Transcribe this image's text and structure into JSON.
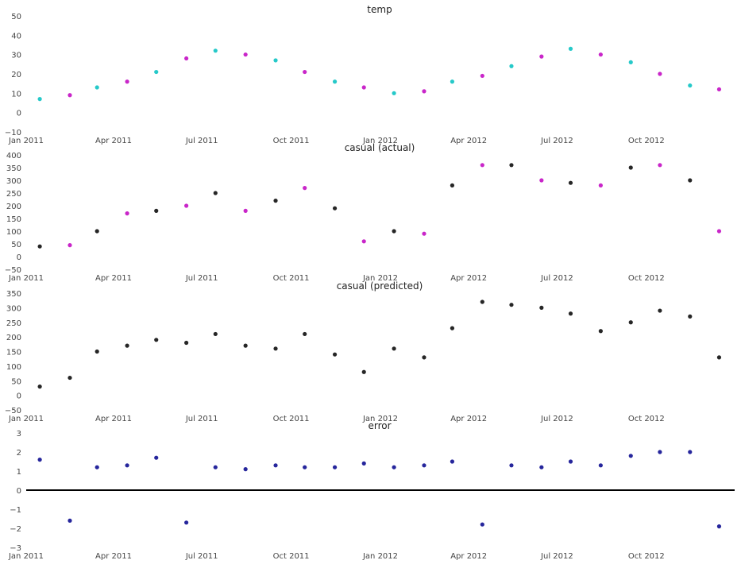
{
  "colors": {
    "cyan": "#00bfbf",
    "magenta": "#bf00bf",
    "black": "#000000",
    "navy": "#00008b",
    "tick": "#444444"
  },
  "x_axis": {
    "range": [
      "2011-01-01",
      "2012-12-31"
    ],
    "ticks": [
      {
        "date": "2011-01-01",
        "label": "Jan 2011"
      },
      {
        "date": "2011-04-01",
        "label": "Apr 2011"
      },
      {
        "date": "2011-07-01",
        "label": "Jul 2011"
      },
      {
        "date": "2011-10-01",
        "label": "Oct 2011"
      },
      {
        "date": "2012-01-01",
        "label": "Jan 2012"
      },
      {
        "date": "2012-04-01",
        "label": "Apr 2012"
      },
      {
        "date": "2012-07-01",
        "label": "Jul 2012"
      },
      {
        "date": "2012-10-01",
        "label": "Oct 2012"
      }
    ]
  },
  "chart_data": [
    {
      "type": "scatter",
      "title": "temp",
      "ylim": [
        -10,
        50
      ],
      "yticks": [
        -10,
        0,
        10,
        20,
        30,
        40,
        50
      ],
      "grid": false,
      "point_colors": [
        "cyan",
        "magenta"
      ],
      "x": [
        "2011-01-15",
        "2011-02-15",
        "2011-03-15",
        "2011-04-15",
        "2011-05-15",
        "2011-06-15",
        "2011-07-15",
        "2011-08-15",
        "2011-09-15",
        "2011-10-15",
        "2011-11-15",
        "2011-12-15",
        "2012-01-15",
        "2012-02-15",
        "2012-03-15",
        "2012-04-15",
        "2012-05-15",
        "2012-06-15",
        "2012-07-15",
        "2012-08-15",
        "2012-09-15",
        "2012-10-15",
        "2012-11-15",
        "2012-12-15"
      ],
      "series": [
        {
          "values": [
            7,
            9,
            13,
            16,
            21,
            28,
            32,
            30,
            27,
            21,
            16,
            13,
            10,
            11,
            16,
            19,
            24,
            29,
            33,
            30,
            26,
            20,
            14,
            12
          ]
        }
      ]
    },
    {
      "type": "scatter",
      "title": "casual (actual)",
      "ylim": [
        -50,
        400
      ],
      "yticks": [
        -50,
        0,
        50,
        100,
        150,
        200,
        250,
        300,
        350,
        400
      ],
      "grid": false,
      "point_colors": [
        "black",
        "magenta"
      ],
      "x": [
        "2011-01-15",
        "2011-02-15",
        "2011-03-15",
        "2011-04-15",
        "2011-05-15",
        "2011-06-15",
        "2011-07-15",
        "2011-08-15",
        "2011-09-15",
        "2011-10-15",
        "2011-11-15",
        "2011-12-15",
        "2012-01-15",
        "2012-02-15",
        "2012-03-15",
        "2012-04-15",
        "2012-05-15",
        "2012-06-15",
        "2012-07-15",
        "2012-08-15",
        "2012-09-15",
        "2012-10-15",
        "2012-11-15",
        "2012-12-15"
      ],
      "series": [
        {
          "values": [
            40,
            45,
            100,
            170,
            180,
            200,
            250,
            180,
            220,
            270,
            190,
            60,
            100,
            90,
            280,
            360,
            360,
            300,
            290,
            280,
            350,
            360,
            300,
            100
          ]
        }
      ]
    },
    {
      "type": "scatter",
      "title": "casual (predicted)",
      "ylim": [
        -50,
        350
      ],
      "yticks": [
        -50,
        0,
        50,
        100,
        150,
        200,
        250,
        300,
        350
      ],
      "grid": false,
      "point_colors": [
        "black"
      ],
      "x": [
        "2011-01-15",
        "2011-02-15",
        "2011-03-15",
        "2011-04-15",
        "2011-05-15",
        "2011-06-15",
        "2011-07-15",
        "2011-08-15",
        "2011-09-15",
        "2011-10-15",
        "2011-11-15",
        "2011-12-15",
        "2012-01-15",
        "2012-02-15",
        "2012-03-15",
        "2012-04-15",
        "2012-05-15",
        "2012-06-15",
        "2012-07-15",
        "2012-08-15",
        "2012-09-15",
        "2012-10-15",
        "2012-11-15",
        "2012-12-15"
      ],
      "series": [
        {
          "values": [
            30,
            60,
            150,
            170,
            190,
            180,
            210,
            170,
            160,
            210,
            140,
            80,
            160,
            130,
            230,
            320,
            310,
            300,
            280,
            220,
            250,
            290,
            270,
            130
          ]
        }
      ]
    },
    {
      "type": "scatter",
      "title": "error",
      "ylim": [
        -3,
        3
      ],
      "yticks": [
        -3,
        -2,
        -1,
        0,
        1,
        2,
        3
      ],
      "grid": false,
      "point_colors": [
        "navy"
      ],
      "hline": 0,
      "x": [
        "2011-01-15",
        "2011-02-15",
        "2011-03-15",
        "2011-04-15",
        "2011-05-15",
        "2011-06-15",
        "2011-07-15",
        "2011-08-15",
        "2011-09-15",
        "2011-10-15",
        "2011-11-15",
        "2011-12-15",
        "2012-01-15",
        "2012-02-15",
        "2012-03-15",
        "2012-04-15",
        "2012-05-15",
        "2012-06-15",
        "2012-07-15",
        "2012-08-15",
        "2012-09-15",
        "2012-10-15",
        "2012-11-15",
        "2012-12-15"
      ],
      "series": [
        {
          "values": [
            1.6,
            -1.6,
            1.2,
            1.3,
            1.7,
            -1.7,
            1.2,
            1.1,
            1.3,
            1.2,
            1.2,
            1.4,
            1.2,
            1.3,
            1.5,
            -1.8,
            1.3,
            1.2,
            1.5,
            1.3,
            1.8,
            2.0,
            2.0,
            -1.9
          ]
        }
      ]
    }
  ]
}
